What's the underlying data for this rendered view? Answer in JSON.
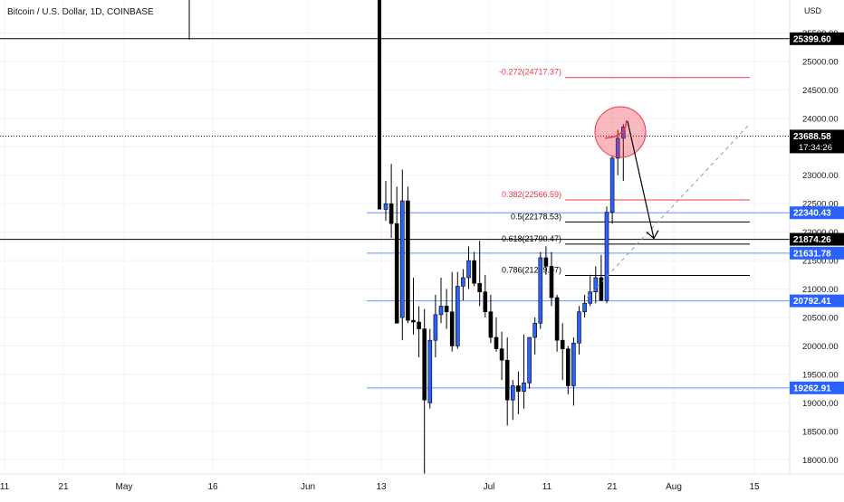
{
  "header": {
    "symbol_title": "Bitcoin / U.S. Dollar, 1D, COINBASE"
  },
  "colors": {
    "up_body": "#2962ff",
    "down_body": "#000000",
    "wick": "#000000",
    "fib_red": "#f23645",
    "blue_line": "#2962ff",
    "axis_text": "#131722",
    "grid": "#f0f3fa"
  },
  "chart_data": {
    "type": "candlestick",
    "title": "Bitcoin / U.S. Dollar, 1D, COINBASE",
    "currency": "USD",
    "x_tick_labels": [
      "11",
      "21",
      "May",
      "16",
      "Jun",
      "13",
      "Jul",
      "11",
      "21",
      "Aug",
      "15"
    ],
    "y_tick_labels": [
      "25500.00",
      "25000.00",
      "24500.00",
      "24000.00",
      "23500.00",
      "23000.00",
      "22500.00",
      "22000.00",
      "21500.00",
      "21000.00",
      "20500.00",
      "20000.00",
      "19500.00",
      "19000.00",
      "18500.00",
      "18000.00"
    ],
    "price_scale": {
      "min": 17750,
      "max": 26080
    },
    "candles": [
      {
        "o": 22400,
        "h": 22900,
        "l": 22200,
        "c": 22500
      },
      {
        "o": 22500,
        "h": 23200,
        "l": 21900,
        "c": 22150
      },
      {
        "o": 22150,
        "h": 22800,
        "l": 20400,
        "c": 20400
      },
      {
        "o": 20500,
        "h": 23100,
        "l": 20100,
        "c": 22550
      },
      {
        "o": 22550,
        "h": 22800,
        "l": 20400,
        "c": 20450
      },
      {
        "o": 20450,
        "h": 21200,
        "l": 20200,
        "c": 20420
      },
      {
        "o": 20420,
        "h": 20700,
        "l": 19800,
        "c": 20300
      },
      {
        "o": 20300,
        "h": 20650,
        "l": 17650,
        "c": 19050
      },
      {
        "o": 19000,
        "h": 20300,
        "l": 18900,
        "c": 20100
      },
      {
        "o": 20100,
        "h": 20900,
        "l": 19800,
        "c": 20550
      },
      {
        "o": 20550,
        "h": 21200,
        "l": 20400,
        "c": 20700
      },
      {
        "o": 20700,
        "h": 21000,
        "l": 20300,
        "c": 20600
      },
      {
        "o": 20600,
        "h": 21300,
        "l": 19900,
        "c": 20000
      },
      {
        "o": 20000,
        "h": 21300,
        "l": 19950,
        "c": 21050
      },
      {
        "o": 21050,
        "h": 21350,
        "l": 20800,
        "c": 21200
      },
      {
        "o": 21200,
        "h": 21750,
        "l": 21000,
        "c": 21500
      },
      {
        "o": 21500,
        "h": 21650,
        "l": 21050,
        "c": 21100
      },
      {
        "o": 21100,
        "h": 21850,
        "l": 20700,
        "c": 20950
      },
      {
        "o": 20950,
        "h": 21250,
        "l": 20500,
        "c": 20600
      },
      {
        "o": 20600,
        "h": 20900,
        "l": 20050,
        "c": 20150
      },
      {
        "o": 20150,
        "h": 20500,
        "l": 19900,
        "c": 19950
      },
      {
        "o": 19950,
        "h": 20250,
        "l": 19400,
        "c": 19750
      },
      {
        "o": 19750,
        "h": 20150,
        "l": 18600,
        "c": 19050
      },
      {
        "o": 19050,
        "h": 19400,
        "l": 18700,
        "c": 19300
      },
      {
        "o": 19300,
        "h": 19550,
        "l": 18800,
        "c": 19200
      },
      {
        "o": 19200,
        "h": 20200,
        "l": 18900,
        "c": 19350
      },
      {
        "o": 19350,
        "h": 20150,
        "l": 19250,
        "c": 20150
      },
      {
        "o": 20150,
        "h": 20500,
        "l": 19850,
        "c": 20400
      },
      {
        "o": 20400,
        "h": 21650,
        "l": 20300,
        "c": 21550
      },
      {
        "o": 21550,
        "h": 21750,
        "l": 21250,
        "c": 21400
      },
      {
        "o": 21400,
        "h": 21650,
        "l": 20700,
        "c": 20850
      },
      {
        "o": 20850,
        "h": 20900,
        "l": 19900,
        "c": 20100
      },
      {
        "o": 20100,
        "h": 20400,
        "l": 19400,
        "c": 19950
      },
      {
        "o": 19950,
        "h": 20000,
        "l": 19150,
        "c": 19300
      },
      {
        "o": 19300,
        "h": 20150,
        "l": 18950,
        "c": 20050
      },
      {
        "o": 20050,
        "h": 20700,
        "l": 19850,
        "c": 20600
      },
      {
        "o": 20600,
        "h": 20900,
        "l": 20500,
        "c": 20750
      },
      {
        "o": 20750,
        "h": 21250,
        "l": 20700,
        "c": 20950
      },
      {
        "o": 20950,
        "h": 21400,
        "l": 20750,
        "c": 21200
      },
      {
        "o": 21200,
        "h": 21600,
        "l": 20800,
        "c": 20800
      },
      {
        "o": 20800,
        "h": 22450,
        "l": 20750,
        "c": 22350
      },
      {
        "o": 22350,
        "h": 23350,
        "l": 22150,
        "c": 23300
      },
      {
        "o": 23300,
        "h": 23800,
        "l": 23000,
        "c": 23650
      },
      {
        "o": 23650,
        "h": 23900,
        "l": 22900,
        "c": 23850
      }
    ],
    "horizontal_lines": [
      {
        "price": 25399.6,
        "label": "25399.60",
        "color": "#000000"
      },
      {
        "price": 23688.58,
        "label": "23688.58",
        "sublabel": "17:34:26",
        "color": "#000000",
        "dotted": true
      },
      {
        "price": 22340.43,
        "label": "22340.43",
        "color": "#2962ff"
      },
      {
        "price": 21874.26,
        "label": "21874.26",
        "color": "#000000"
      },
      {
        "price": 21631.78,
        "label": "21631.78",
        "color": "#2962ff"
      },
      {
        "price": 20792.41,
        "label": "20792.41",
        "color": "#2962ff"
      },
      {
        "price": 19262.91,
        "label": "19262.91",
        "color": "#2962ff"
      }
    ],
    "fib_levels": [
      {
        "price": 24717.37,
        "label": "-0.272(24717.37)",
        "color": "#f23645"
      },
      {
        "price": 22566.59,
        "label": "0.382(22566.59)",
        "color": "#f23645"
      },
      {
        "price": 22178.53,
        "label": "0.5(22178.53)",
        "color": "#000000"
      },
      {
        "price": 21790.47,
        "label": "0.618(21790.47)",
        "color": "#000000"
      },
      {
        "price": 21239.97,
        "label": "0.786(21239.97)",
        "color": "#000000"
      }
    ],
    "annotations": [
      "circle highlight around latest candles",
      "arrow pointing down to 0.618 level",
      "dashed diagonal trend line"
    ]
  }
}
